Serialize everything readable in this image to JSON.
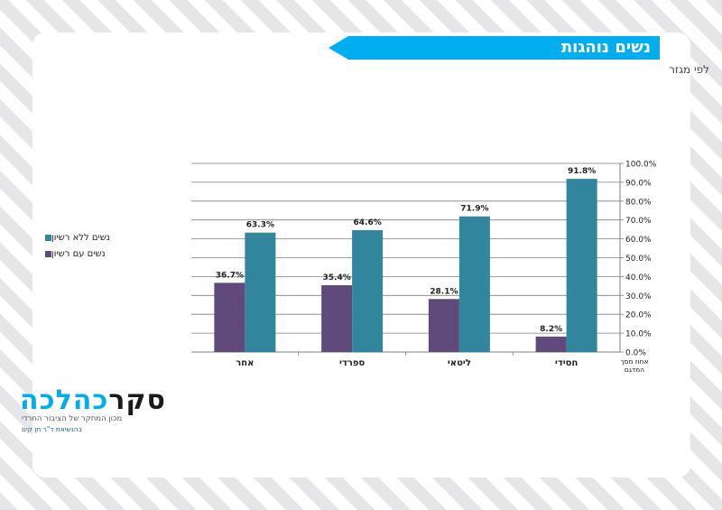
{
  "header": {
    "title": "נשים נוהגות",
    "subtitle": "לפי מגזר"
  },
  "logo": {
    "brand_part1": "סקר",
    "brand_part2": "כהלכה",
    "tagline": "מכון המחקר של הציבור החרדי",
    "sponsor": "בהנשיאת ד\"ר חן קים"
  },
  "chart_data": {
    "type": "bar",
    "categories": [
      "אחר",
      "ספרדי",
      "ליטאי",
      "חסידי"
    ],
    "series": [
      {
        "name": "נשים עם רשיון",
        "color": "#604a7b",
        "values": [
          36.7,
          35.4,
          28.1,
          8.2
        ]
      },
      {
        "name": "נשים ללא רשיון",
        "color": "#31859c",
        "values": [
          63.3,
          64.6,
          71.9,
          91.8
        ]
      }
    ],
    "value_labels": [
      [
        "36.7%",
        "35.4%",
        "28.1%",
        "8.2%"
      ],
      [
        "63.3%",
        "64.6%",
        "71.9%",
        "91.8%"
      ]
    ],
    "ytick_labels": [
      "0.0%",
      "10.0%",
      "20.0%",
      "30.0%",
      "40.0%",
      "50.0%",
      "60.0%",
      "70.0%",
      "80.0%",
      "90.0%",
      "100.0%"
    ],
    "ylim": [
      0,
      100
    ],
    "y_axis_side": "right",
    "grid": true,
    "axis_caption": [
      "אחוז מסך",
      "המדגם"
    ],
    "legend": {
      "position": "left",
      "order": [
        "נשים ללא רשיון",
        "נשים עם רשיון"
      ]
    }
  }
}
